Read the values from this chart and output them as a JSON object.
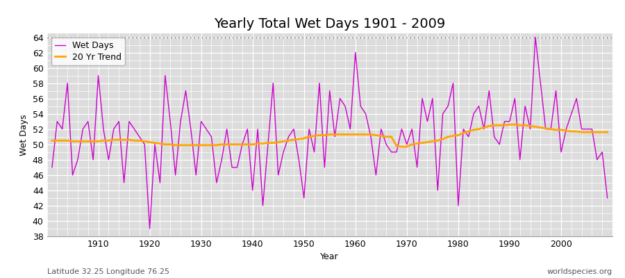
{
  "title": "Yearly Total Wet Days 1901 - 2009",
  "xlabel": "Year",
  "ylabel": "Wet Days",
  "subtitle_left": "Latitude 32.25 Longitude 76.25",
  "subtitle_right": "worldspecies.org",
  "years": [
    1901,
    1902,
    1903,
    1904,
    1905,
    1906,
    1907,
    1908,
    1909,
    1910,
    1911,
    1912,
    1913,
    1914,
    1915,
    1916,
    1917,
    1918,
    1919,
    1920,
    1921,
    1922,
    1923,
    1924,
    1925,
    1926,
    1927,
    1928,
    1929,
    1930,
    1931,
    1932,
    1933,
    1934,
    1935,
    1936,
    1937,
    1938,
    1939,
    1940,
    1941,
    1942,
    1943,
    1944,
    1945,
    1946,
    1947,
    1948,
    1949,
    1950,
    1951,
    1952,
    1953,
    1954,
    1955,
    1956,
    1957,
    1958,
    1959,
    1960,
    1961,
    1962,
    1963,
    1964,
    1965,
    1966,
    1967,
    1968,
    1969,
    1970,
    1971,
    1972,
    1973,
    1974,
    1975,
    1976,
    1977,
    1978,
    1979,
    1980,
    1981,
    1982,
    1983,
    1984,
    1985,
    1986,
    1987,
    1988,
    1989,
    1990,
    1991,
    1992,
    1993,
    1994,
    1995,
    1996,
    1997,
    1998,
    1999,
    2000,
    2001,
    2002,
    2003,
    2004,
    2005,
    2006,
    2007,
    2008,
    2009
  ],
  "wet_days": [
    47,
    53,
    52,
    58,
    46,
    48,
    52,
    53,
    48,
    59,
    52,
    48,
    52,
    53,
    45,
    53,
    52,
    51,
    50,
    39,
    50,
    45,
    59,
    53,
    46,
    53,
    57,
    52,
    46,
    53,
    52,
    51,
    45,
    48,
    52,
    47,
    47,
    50,
    52,
    44,
    52,
    42,
    50,
    58,
    46,
    49,
    51,
    52,
    48,
    43,
    52,
    49,
    58,
    47,
    57,
    51,
    56,
    55,
    52,
    62,
    55,
    54,
    51,
    46,
    52,
    50,
    49,
    49,
    52,
    50,
    52,
    47,
    56,
    53,
    56,
    44,
    54,
    55,
    58,
    42,
    52,
    51,
    54,
    55,
    52,
    57,
    51,
    50,
    53,
    53,
    56,
    48,
    55,
    52,
    64,
    58,
    52,
    52,
    57,
    49,
    52,
    54,
    56,
    52,
    52,
    52,
    48,
    49,
    43
  ],
  "trend": [
    50.5,
    50.5,
    50.5,
    50.5,
    50.4,
    50.4,
    50.4,
    50.4,
    50.4,
    50.4,
    50.5,
    50.5,
    50.6,
    50.6,
    50.6,
    50.6,
    50.5,
    50.5,
    50.4,
    50.3,
    50.2,
    50.1,
    50.0,
    50.0,
    49.9,
    49.9,
    49.9,
    49.9,
    49.9,
    49.9,
    49.9,
    49.9,
    49.9,
    50.0,
    50.0,
    50.0,
    50.0,
    50.0,
    50.0,
    50.0,
    50.1,
    50.1,
    50.2,
    50.2,
    50.3,
    50.4,
    50.5,
    50.6,
    50.7,
    50.8,
    51.0,
    51.1,
    51.2,
    51.2,
    51.3,
    51.3,
    51.3,
    51.3,
    51.3,
    51.3,
    51.3,
    51.3,
    51.3,
    51.2,
    51.1,
    51.0,
    51.0,
    49.8,
    49.7,
    49.7,
    50.0,
    50.1,
    50.2,
    50.3,
    50.4,
    50.5,
    50.7,
    51.0,
    51.1,
    51.2,
    51.5,
    51.7,
    51.9,
    52.0,
    52.2,
    52.4,
    52.5,
    52.5,
    52.5,
    52.6,
    52.6,
    52.5,
    52.5,
    52.4,
    52.3,
    52.2,
    52.1,
    52.0,
    51.9,
    51.9,
    51.8,
    51.7,
    51.7,
    51.6,
    51.6,
    51.6,
    51.6,
    51.6,
    51.6
  ],
  "wet_days_color": "#cc00cc",
  "trend_color": "#FFA500",
  "bg_color": "#ffffff",
  "plot_bg_color": "#dcdcdc",
  "ylim": [
    38,
    64.5
  ],
  "yticks": [
    38,
    40,
    42,
    44,
    46,
    48,
    50,
    52,
    54,
    56,
    58,
    60,
    62,
    64
  ],
  "xlim": [
    1900,
    2010
  ],
  "xticks": [
    1910,
    1920,
    1930,
    1940,
    1950,
    1960,
    1970,
    1980,
    1990,
    2000
  ],
  "hline_y": 64,
  "hline_color": "#555555",
  "title_fontsize": 14,
  "axis_fontsize": 9,
  "legend_fontsize": 9
}
